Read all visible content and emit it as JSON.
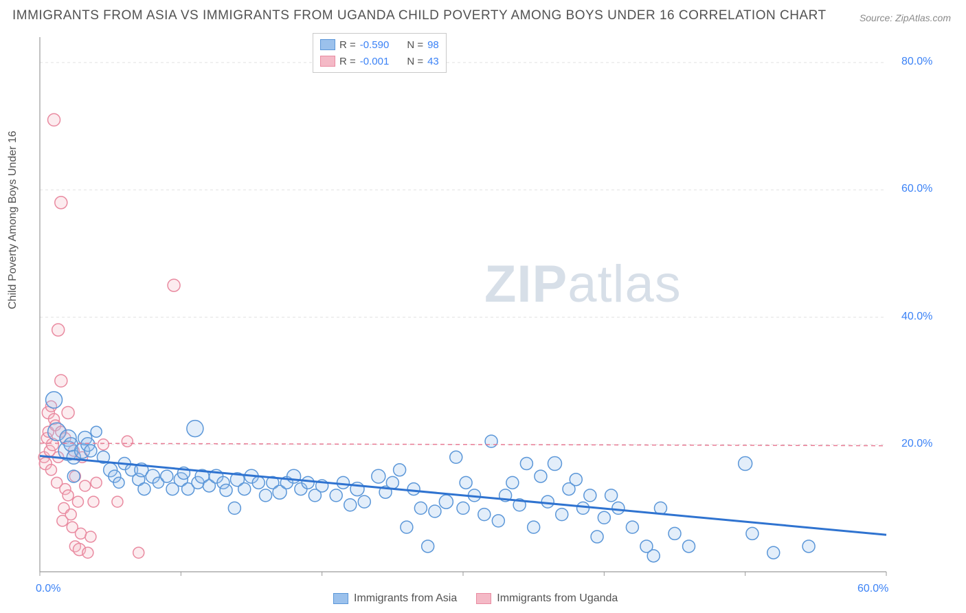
{
  "title": "IMMIGRANTS FROM ASIA VS IMMIGRANTS FROM UGANDA CHILD POVERTY AMONG BOYS UNDER 16 CORRELATION CHART",
  "source": "Source: ZipAtlas.com",
  "ylabel": "Child Poverty Among Boys Under 16",
  "watermark_bold": "ZIP",
  "watermark_rest": "atlas",
  "chart": {
    "type": "scatter",
    "background_color": "#ffffff",
    "grid_color": "#e2e2e2",
    "axis_color": "#9a9a9a",
    "xlim": [
      0,
      60
    ],
    "ylim": [
      0,
      84
    ],
    "xtick_vals": [
      0,
      60
    ],
    "xtick_labels": [
      "0.0%",
      "60.0%"
    ],
    "ytick_vals": [
      20,
      40,
      60,
      80
    ],
    "ytick_labels": [
      "20.0%",
      "40.0%",
      "60.0%",
      "80.0%"
    ],
    "grid_yvals": [
      20,
      40,
      60,
      80
    ],
    "marker_radius_min": 6,
    "marker_radius_max": 13,
    "marker_stroke_width": 1.5,
    "marker_fill_opacity": 0.28
  },
  "series": [
    {
      "name": "Immigrants from Asia",
      "fill": "#9bc1ec",
      "stroke": "#5a96d8",
      "trend": {
        "x1": 0,
        "y1": 18.2,
        "x2": 60,
        "y2": 5.8,
        "color": "#2f73d0",
        "width": 3,
        "dash": ""
      },
      "R": "-0.590",
      "N": "98",
      "points": [
        [
          1.0,
          27,
          12
        ],
        [
          1.2,
          22,
          13
        ],
        [
          2.0,
          21,
          12
        ],
        [
          2.0,
          19,
          14
        ],
        [
          2.2,
          20,
          10
        ],
        [
          2.4,
          18,
          10
        ],
        [
          2.4,
          15,
          9
        ],
        [
          3.0,
          19,
          11
        ],
        [
          3.2,
          21,
          10
        ],
        [
          3.4,
          20,
          10
        ],
        [
          3.6,
          19,
          9
        ],
        [
          4.0,
          22,
          8
        ],
        [
          4.5,
          18,
          9
        ],
        [
          5.0,
          16,
          10
        ],
        [
          5.3,
          15,
          9
        ],
        [
          5.6,
          14,
          8
        ],
        [
          6.0,
          17,
          9
        ],
        [
          6.5,
          16,
          9
        ],
        [
          7.0,
          14.5,
          9
        ],
        [
          7.2,
          16,
          10
        ],
        [
          7.4,
          13,
          9
        ],
        [
          8.0,
          15,
          10
        ],
        [
          8.4,
          14,
          8
        ],
        [
          9.0,
          15,
          9
        ],
        [
          9.4,
          13,
          9
        ],
        [
          10.0,
          14.5,
          10
        ],
        [
          10.2,
          15.5,
          9
        ],
        [
          10.5,
          13,
          9
        ],
        [
          11.0,
          22.5,
          12
        ],
        [
          11.2,
          14,
          9
        ],
        [
          11.5,
          15,
          10
        ],
        [
          12.0,
          13.5,
          9
        ],
        [
          12.5,
          15,
          10
        ],
        [
          13.0,
          14,
          9
        ],
        [
          13.2,
          12.8,
          9
        ],
        [
          13.8,
          10,
          9
        ],
        [
          14.0,
          14.5,
          10
        ],
        [
          14.5,
          13,
          9
        ],
        [
          15.0,
          15,
          10
        ],
        [
          15.5,
          14,
          9
        ],
        [
          16.0,
          12,
          9
        ],
        [
          16.5,
          14,
          9
        ],
        [
          17.0,
          12.5,
          10
        ],
        [
          17.5,
          14,
          9
        ],
        [
          18.0,
          15,
          10
        ],
        [
          18.5,
          13,
          9
        ],
        [
          19.0,
          14,
          9
        ],
        [
          19.5,
          12,
          9
        ],
        [
          20.0,
          13.5,
          9
        ],
        [
          21.0,
          12,
          9
        ],
        [
          21.5,
          14,
          9
        ],
        [
          22.0,
          10.5,
          9
        ],
        [
          22.5,
          13,
          10
        ],
        [
          23.0,
          11,
          9
        ],
        [
          24.0,
          15,
          10
        ],
        [
          24.5,
          12.5,
          9
        ],
        [
          25.0,
          14,
          9
        ],
        [
          25.5,
          16,
          9
        ],
        [
          26.0,
          7,
          9
        ],
        [
          26.5,
          13,
          9
        ],
        [
          27.0,
          10,
          9
        ],
        [
          27.5,
          4,
          9
        ],
        [
          28.0,
          9.5,
          9
        ],
        [
          28.8,
          11,
          10
        ],
        [
          29.5,
          18,
          9
        ],
        [
          30.0,
          10,
          9
        ],
        [
          30.2,
          14,
          9
        ],
        [
          30.8,
          12,
          9
        ],
        [
          31.5,
          9,
          9
        ],
        [
          32.0,
          20.5,
          9
        ],
        [
          32.5,
          8,
          9
        ],
        [
          33.0,
          12,
          9
        ],
        [
          33.5,
          14,
          9
        ],
        [
          34.0,
          10.5,
          9
        ],
        [
          34.5,
          17,
          9
        ],
        [
          35.0,
          7,
          9
        ],
        [
          35.5,
          15,
          9
        ],
        [
          36.0,
          11,
          9
        ],
        [
          36.5,
          17,
          10
        ],
        [
          37.0,
          9,
          9
        ],
        [
          37.5,
          13,
          9
        ],
        [
          38.0,
          14.5,
          9
        ],
        [
          38.5,
          10,
          9
        ],
        [
          39.0,
          12,
          9
        ],
        [
          39.5,
          5.5,
          9
        ],
        [
          40.0,
          8.5,
          9
        ],
        [
          40.5,
          12,
          9
        ],
        [
          41.0,
          10,
          9
        ],
        [
          42.0,
          7,
          9
        ],
        [
          43.0,
          4,
          9
        ],
        [
          43.5,
          2.5,
          9
        ],
        [
          44.0,
          10,
          9
        ],
        [
          45.0,
          6,
          9
        ],
        [
          46.0,
          4,
          9
        ],
        [
          50.0,
          17,
          10
        ],
        [
          50.5,
          6,
          9
        ],
        [
          52.0,
          3,
          9
        ],
        [
          54.5,
          4,
          9
        ]
      ]
    },
    {
      "name": "Immigrants from Uganda",
      "fill": "#f4b9c6",
      "stroke": "#e98aa0",
      "trend": {
        "x1": 0,
        "y1": 20.2,
        "x2": 60,
        "y2": 19.8,
        "color": "#e87b94",
        "width": 1.5,
        "dash": "6,5"
      },
      "R": "-0.001",
      "N": "43",
      "points": [
        [
          0.3,
          18,
          8
        ],
        [
          0.4,
          17,
          9
        ],
        [
          0.5,
          21,
          8
        ],
        [
          0.6,
          22,
          8
        ],
        [
          0.6,
          25,
          9
        ],
        [
          0.7,
          19,
          8
        ],
        [
          0.8,
          26,
          8
        ],
        [
          0.8,
          16,
          8
        ],
        [
          0.9,
          20,
          9
        ],
        [
          1.0,
          71,
          9
        ],
        [
          1.0,
          24,
          8
        ],
        [
          1.1,
          23,
          8
        ],
        [
          1.2,
          14,
          8
        ],
        [
          1.3,
          38,
          9
        ],
        [
          1.3,
          18,
          8
        ],
        [
          1.5,
          30,
          9
        ],
        [
          1.5,
          22,
          8
        ],
        [
          1.5,
          58,
          9
        ],
        [
          1.6,
          8,
          8
        ],
        [
          1.7,
          10,
          8
        ],
        [
          1.8,
          13,
          8
        ],
        [
          1.8,
          21,
          8
        ],
        [
          2.0,
          25,
          9
        ],
        [
          2.0,
          12,
          8
        ],
        [
          2.2,
          9,
          8
        ],
        [
          2.3,
          7,
          8
        ],
        [
          2.4,
          19,
          8
        ],
        [
          2.5,
          4,
          8
        ],
        [
          2.5,
          15,
          8
        ],
        [
          2.7,
          11,
          8
        ],
        [
          2.8,
          3.5,
          9
        ],
        [
          2.9,
          6,
          8
        ],
        [
          3.0,
          18,
          8
        ],
        [
          3.2,
          13.5,
          8
        ],
        [
          3.4,
          3,
          8
        ],
        [
          3.6,
          5.5,
          8
        ],
        [
          3.8,
          11,
          8
        ],
        [
          4.0,
          14,
          8
        ],
        [
          4.5,
          20,
          8
        ],
        [
          5.5,
          11,
          8
        ],
        [
          7.0,
          3,
          8
        ],
        [
          9.5,
          45,
          9
        ],
        [
          6.2,
          20.5,
          8
        ]
      ]
    }
  ],
  "stat_labels": {
    "R": "R =",
    "N": "N ="
  },
  "bottom_legend": [
    {
      "label": "Immigrants from Asia",
      "fill": "#9bc1ec",
      "stroke": "#5a96d8"
    },
    {
      "label": "Immigrants from Uganda",
      "fill": "#f4b9c6",
      "stroke": "#e98aa0"
    }
  ]
}
